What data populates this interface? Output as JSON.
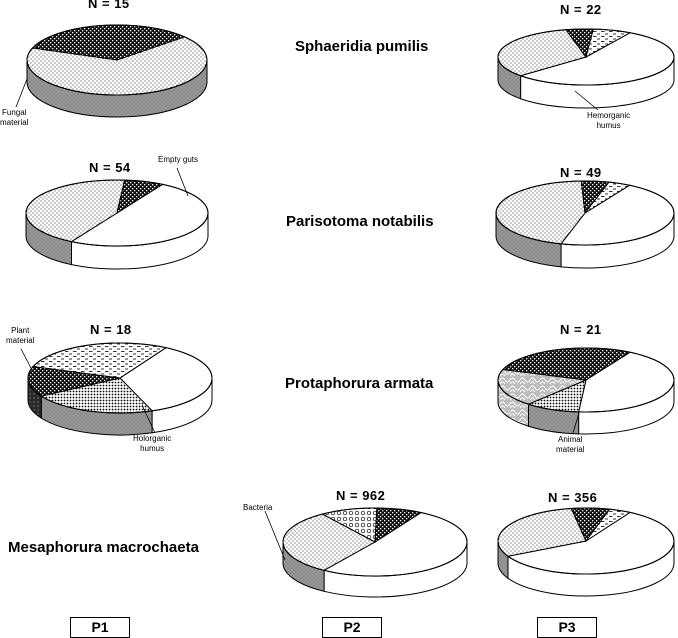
{
  "species": [
    "Sphaeridia pumilis",
    "Parisotoma notabilis",
    "Protaphorura armata",
    "Mesaphorura macrochaeta"
  ],
  "plots": [
    "P1",
    "P2",
    "P3"
  ],
  "categories": {
    "empty": "Empty guts",
    "hemorganic": "Hemorganic humus",
    "fungal": "Fungal material",
    "plant": "Plant material",
    "holorganic": "Holorganic humus",
    "animal": "Animal material",
    "bacteria": "Bacteria"
  },
  "n_labels": {
    "sp_p1": "N = 15",
    "sp_p3": "N = 22",
    "pn_p1": "N = 54",
    "pn_p3": "N = 49",
    "pa_p1": "N = 18",
    "pa_p3": "N = 21",
    "mm_p2": "N = 962",
    "mm_p3": "N = 356"
  },
  "callouts": {
    "fungal": [
      "Fungal",
      "material"
    ],
    "hemorganic": [
      "Hemorganic",
      "humus"
    ],
    "empty": [
      "Empty guts"
    ],
    "plant": [
      "Plant",
      "material"
    ],
    "holorganic": [
      "Holorganic",
      "humus"
    ],
    "animal": [
      "Animal",
      "material"
    ],
    "bacteria": [
      "Bacteria"
    ]
  },
  "chart_data": {
    "type": "pie",
    "title": "",
    "pies": [
      {
        "species": "Sphaeridia pumilis",
        "plot": "P1",
        "n": 15,
        "slices": [
          {
            "category": "fungal",
            "value": 33
          },
          {
            "category": "hemorganic",
            "value": 67
          }
        ]
      },
      {
        "species": "Sphaeridia pumilis",
        "plot": "P3",
        "n": 22,
        "slices": [
          {
            "category": "empty",
            "value": 55
          },
          {
            "category": "hemorganic",
            "value": 33
          },
          {
            "category": "fungal",
            "value": 5
          },
          {
            "category": "plant",
            "value": 7
          }
        ]
      },
      {
        "species": "Parisotoma notabilis",
        "plot": "P1",
        "n": 54,
        "slices": [
          {
            "category": "empty",
            "value": 50
          },
          {
            "category": "hemorganic",
            "value": 43
          },
          {
            "category": "fungal",
            "value": 7
          }
        ]
      },
      {
        "species": "Parisotoma notabilis",
        "plot": "P3",
        "n": 49,
        "slices": [
          {
            "category": "empty",
            "value": 46
          },
          {
            "category": "hemorganic",
            "value": 45
          },
          {
            "category": "fungal",
            "value": 5
          },
          {
            "category": "plant",
            "value": 4
          }
        ]
      },
      {
        "species": "Protaphorura armata",
        "plot": "P1",
        "n": 18,
        "slices": [
          {
            "category": "empty",
            "value": 36
          },
          {
            "category": "holorganic",
            "value": 22
          },
          {
            "category": "fungal",
            "value": 14
          },
          {
            "category": "plant",
            "value": 28
          }
        ]
      },
      {
        "species": "Protaphorura armata",
        "plot": "P3",
        "n": 21,
        "slices": [
          {
            "category": "empty",
            "value": 43
          },
          {
            "category": "holorganic",
            "value": 10
          },
          {
            "category": "animal",
            "value": 19
          },
          {
            "category": "fungal",
            "value": 28
          }
        ]
      },
      {
        "species": "Mesaphorura macrochaeta",
        "plot": "P2",
        "n": 962,
        "slices": [
          {
            "category": "empty",
            "value": 51
          },
          {
            "category": "hemorganic",
            "value": 31
          },
          {
            "category": "bacteria",
            "value": 10
          },
          {
            "category": "fungal",
            "value": 8
          }
        ]
      },
      {
        "species": "Mesaphorura macrochaeta",
        "plot": "P3",
        "n": 356,
        "slices": [
          {
            "category": "empty",
            "value": 59
          },
          {
            "category": "hemorganic",
            "value": 30
          },
          {
            "category": "fungal",
            "value": 7
          },
          {
            "category": "plant",
            "value": 4
          }
        ]
      }
    ]
  }
}
